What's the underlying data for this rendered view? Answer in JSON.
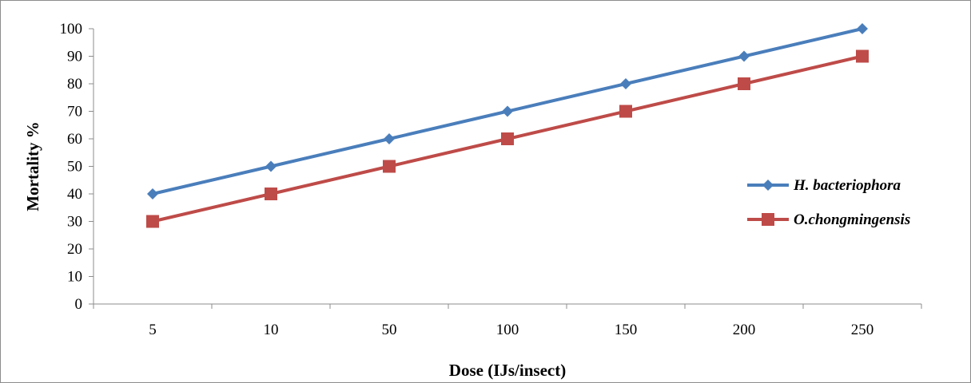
{
  "chart_data": {
    "type": "line",
    "title": "",
    "xlabel": "Dose (IJs/insect)",
    "ylabel": "Mortality %",
    "categories": [
      "5",
      "10",
      "50",
      "100",
      "150",
      "200",
      "250"
    ],
    "ylim": [
      0,
      100
    ],
    "ytick_step": 10,
    "yticks": [
      "0",
      "10",
      "20",
      "30",
      "40",
      "50",
      "60",
      "70",
      "80",
      "90",
      "100"
    ],
    "grid": false,
    "legend_position": "right",
    "series": [
      {
        "name": "H. bacteriophora",
        "values": [
          40,
          50,
          60,
          70,
          80,
          90,
          100
        ],
        "color": "#4a7ebb",
        "marker": "diamond"
      },
      {
        "name": "O.chongmingensis",
        "values": [
          30,
          40,
          50,
          60,
          70,
          80,
          90
        ],
        "color": "#be4b48",
        "marker": "square"
      }
    ]
  }
}
